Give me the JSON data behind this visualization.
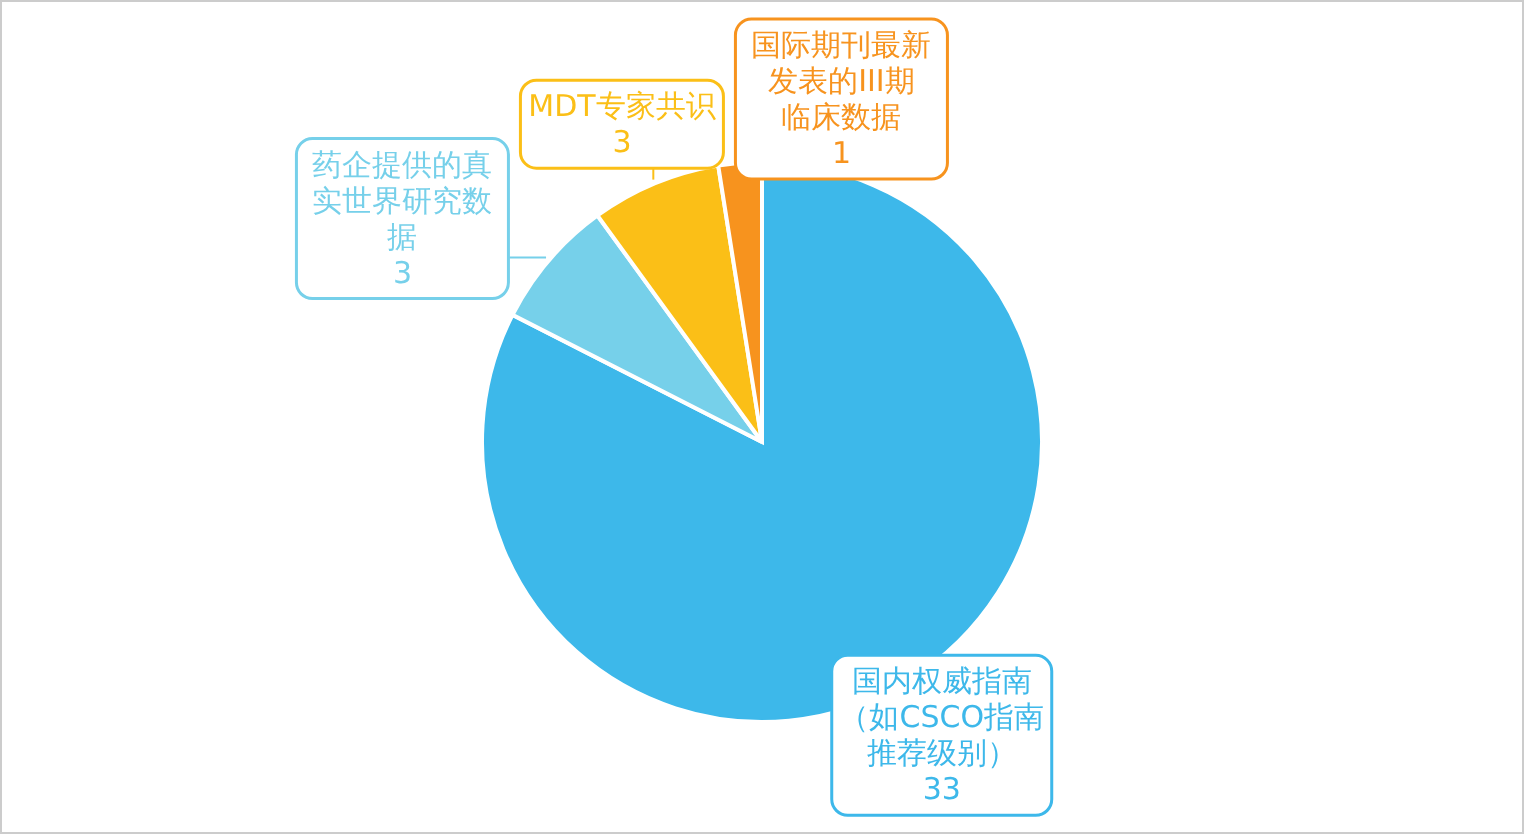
{
  "chart_data": {
    "type": "pie",
    "categories": [
      "国内权威指南（如CSCO指南推荐级别）",
      "药企提供的真实世界研究数据",
      "MDT专家共识",
      "国际期刊最新发表的III期临床数据"
    ],
    "values": [
      33,
      3,
      3,
      1
    ],
    "colors": [
      "#3db8ea",
      "#76d0ea",
      "#fbbf17",
      "#f7931e"
    ],
    "data_labels": true
  }
}
